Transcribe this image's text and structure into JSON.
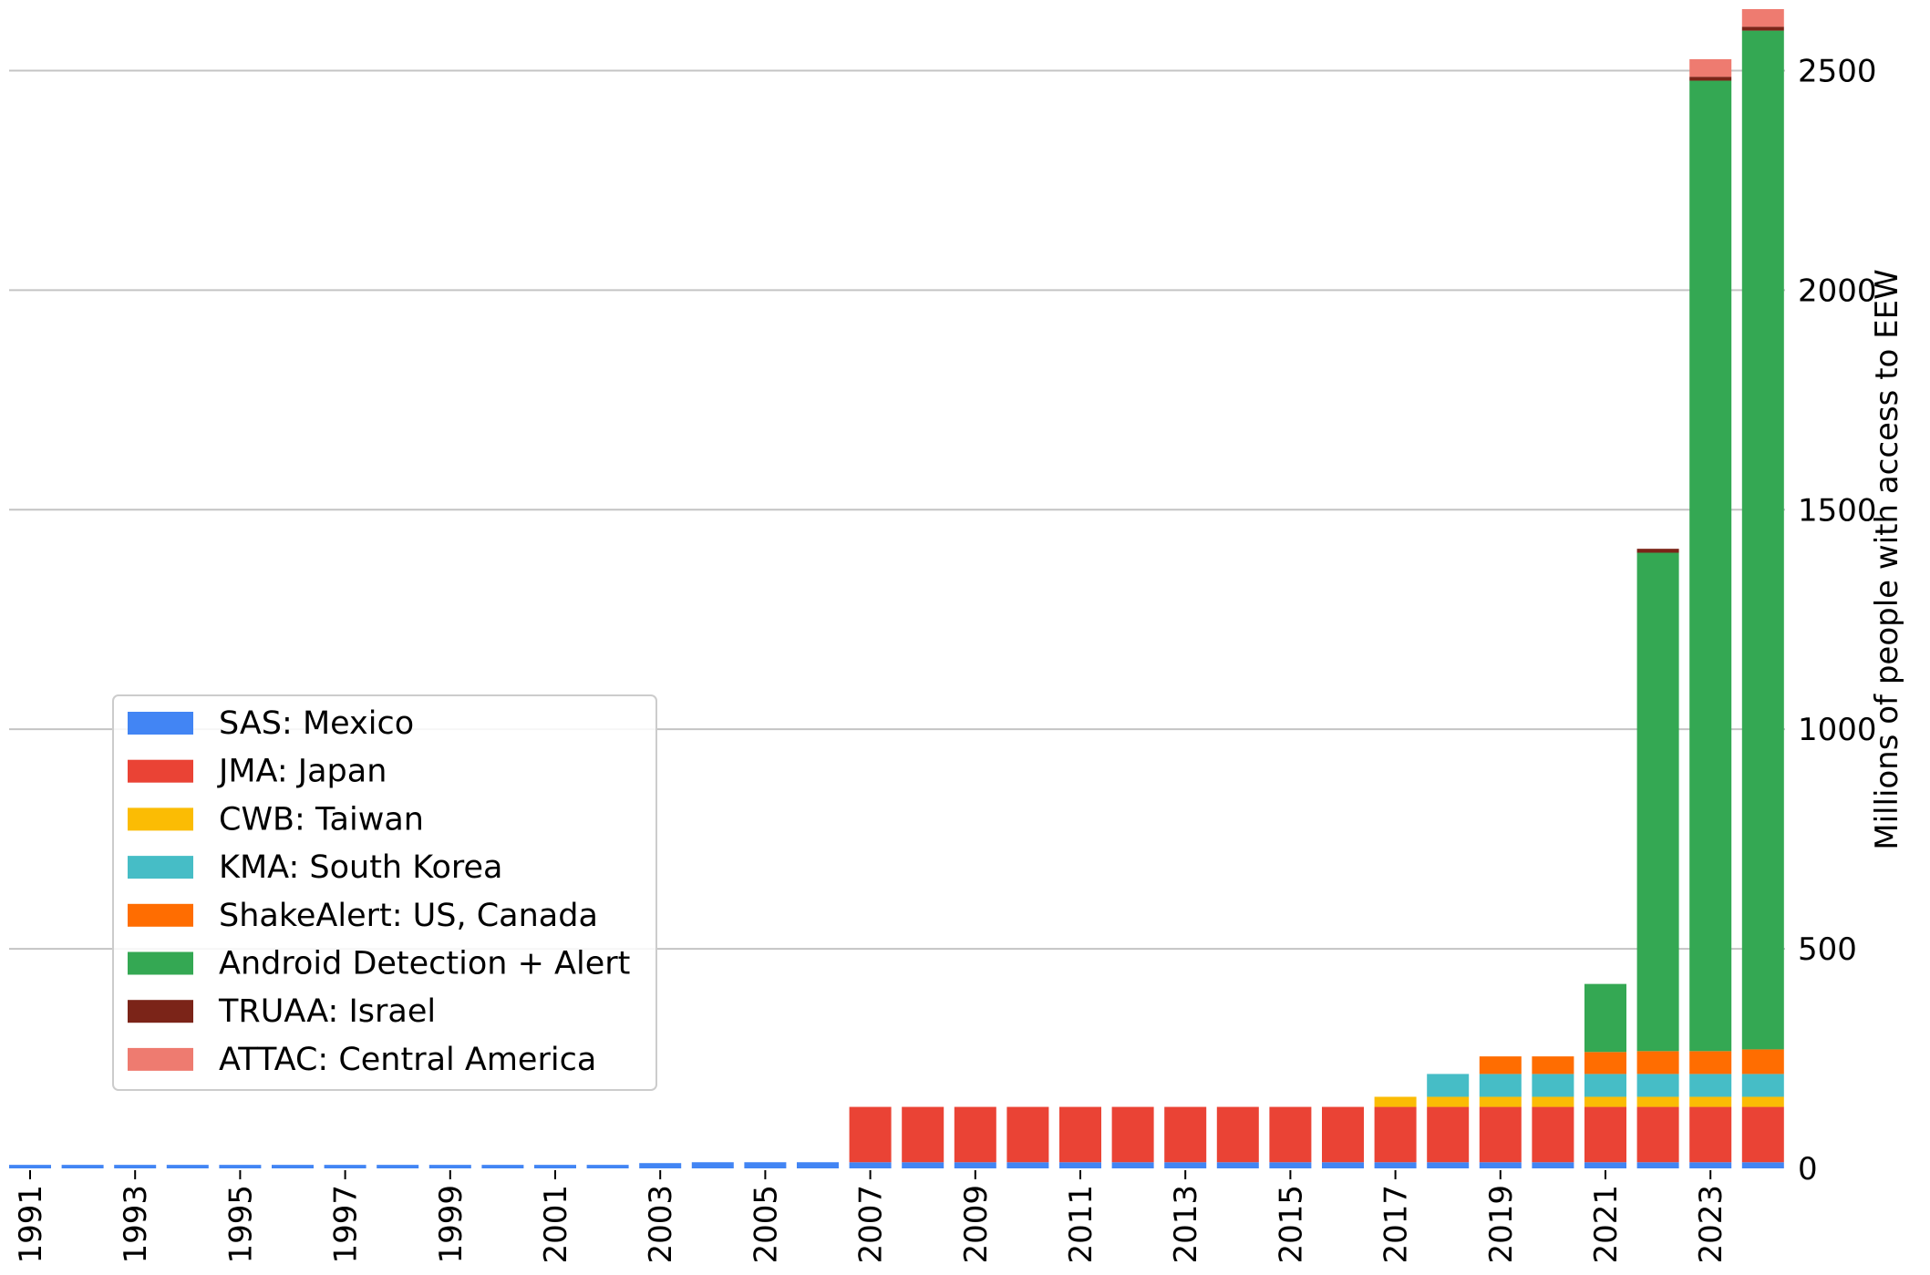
{
  "chart_data": {
    "type": "bar",
    "stacked": true,
    "ylabel": "Millions of people with access to EEW",
    "xlabel": "",
    "title": "",
    "ylim": [
      0,
      2640
    ],
    "yticks": [
      0,
      500,
      1000,
      1500,
      2000,
      2500
    ],
    "grid": "horizontal",
    "y_axis_side": "right",
    "legend_position": "center-left",
    "categories": [
      1991,
      1992,
      1993,
      1994,
      1995,
      1996,
      1997,
      1998,
      1999,
      2000,
      2001,
      2002,
      2003,
      2004,
      2005,
      2006,
      2007,
      2008,
      2009,
      2010,
      2011,
      2012,
      2013,
      2014,
      2015,
      2016,
      2017,
      2018,
      2019,
      2020,
      2021,
      2022,
      2023,
      2024
    ],
    "x_tick_labels": [
      "1991",
      "1993",
      "1995",
      "1997",
      "1999",
      "2001",
      "2003",
      "2005",
      "2007",
      "2009",
      "2011",
      "2013",
      "2015",
      "2017",
      "2019",
      "2021",
      "2023"
    ],
    "series": [
      {
        "name": "SAS: Mexico",
        "color": "#4285f4",
        "values": [
          8,
          8,
          8,
          8,
          8,
          8,
          8,
          8,
          8,
          8,
          8,
          8,
          12,
          14,
          14,
          14,
          14,
          14,
          14,
          14,
          14,
          14,
          14,
          14,
          14,
          14,
          14,
          14,
          14,
          14,
          14,
          14,
          14,
          14
        ]
      },
      {
        "name": "JMA: Japan",
        "color": "#ea4335",
        "values": [
          0,
          0,
          0,
          0,
          0,
          0,
          0,
          0,
          0,
          0,
          0,
          0,
          0,
          0,
          0,
          0,
          126,
          126,
          126,
          126,
          126,
          126,
          126,
          126,
          126,
          126,
          126,
          126,
          126,
          126,
          126,
          126,
          126,
          126
        ]
      },
      {
        "name": "CWB: Taiwan",
        "color": "#fbbc04",
        "values": [
          0,
          0,
          0,
          0,
          0,
          0,
          0,
          0,
          0,
          0,
          0,
          0,
          0,
          0,
          0,
          0,
          0,
          0,
          0,
          0,
          0,
          0,
          0,
          0,
          0,
          0,
          23,
          23,
          23,
          23,
          23,
          23,
          23,
          23
        ]
      },
      {
        "name": "KMA: South Korea",
        "color": "#46bdc6",
        "values": [
          0,
          0,
          0,
          0,
          0,
          0,
          0,
          0,
          0,
          0,
          0,
          0,
          0,
          0,
          0,
          0,
          0,
          0,
          0,
          0,
          0,
          0,
          0,
          0,
          0,
          0,
          0,
          52,
          52,
          52,
          52,
          52,
          52,
          52
        ]
      },
      {
        "name": "ShakeAlert: US, Canada",
        "color": "#ff6d01",
        "values": [
          0,
          0,
          0,
          0,
          0,
          0,
          0,
          0,
          0,
          0,
          0,
          0,
          0,
          0,
          0,
          0,
          0,
          0,
          0,
          0,
          0,
          0,
          0,
          0,
          0,
          0,
          0,
          0,
          40,
          40,
          50,
          52,
          52,
          56
        ]
      },
      {
        "name": "Android Detection + Alert",
        "color": "#34a853",
        "values": [
          0,
          0,
          0,
          0,
          0,
          0,
          0,
          0,
          0,
          0,
          0,
          0,
          0,
          0,
          0,
          0,
          0,
          0,
          0,
          0,
          0,
          0,
          0,
          0,
          0,
          0,
          0,
          0,
          0,
          0,
          155,
          1135,
          2210,
          2320
        ]
      },
      {
        "name": "TRUAA: Israel",
        "color": "#7b2418",
        "values": [
          0,
          0,
          0,
          0,
          0,
          0,
          0,
          0,
          0,
          0,
          0,
          0,
          0,
          0,
          0,
          0,
          0,
          0,
          0,
          0,
          0,
          0,
          0,
          0,
          0,
          0,
          0,
          0,
          0,
          0,
          0,
          9,
          9,
          9
        ]
      },
      {
        "name": "ATTAC: Central America",
        "color": "#ee7b70",
        "values": [
          0,
          0,
          0,
          0,
          0,
          0,
          0,
          0,
          0,
          0,
          0,
          0,
          0,
          0,
          0,
          0,
          0,
          0,
          0,
          0,
          0,
          0,
          0,
          0,
          0,
          0,
          0,
          0,
          0,
          0,
          0,
          0,
          40,
          40
        ]
      }
    ]
  }
}
